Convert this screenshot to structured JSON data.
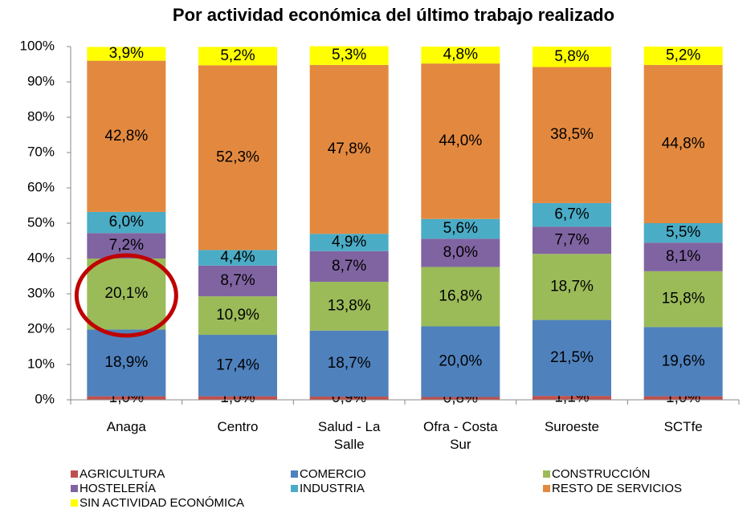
{
  "chart_data": {
    "type": "stacked_bar",
    "title": "Por actividad económica del último trabajo realizado",
    "categories": [
      "Anaga",
      "Centro",
      "Salud - La Salle",
      "Ofra - Costa Sur",
      "Suroeste",
      "SCTfe"
    ],
    "series": [
      {
        "name": "AGRICULTURA",
        "color": "#c0504d",
        "values": [
          1.0,
          1.0,
          0.9,
          0.8,
          1.1,
          1.0
        ],
        "value_labels": [
          "1,0%",
          "1,0%",
          "0,9%",
          "0,8%",
          "1,1%",
          "1,0%"
        ]
      },
      {
        "name": "COMERCIO",
        "color": "#4f81bd",
        "values": [
          18.9,
          17.4,
          18.7,
          20.0,
          21.5,
          19.6
        ],
        "value_labels": [
          "18,9%",
          "17,4%",
          "18,7%",
          "20,0%",
          "21,5%",
          "19,6%"
        ]
      },
      {
        "name": "CONSTRUCCIÓN",
        "color": "#9bbb59",
        "values": [
          20.1,
          10.9,
          13.8,
          16.8,
          18.7,
          15.8
        ],
        "value_labels": [
          "20,1%",
          "10,9%",
          "13,8%",
          "16,8%",
          "18,7%",
          "15,8%"
        ]
      },
      {
        "name": "HOSTELERÍA",
        "color": "#8064a2",
        "values": [
          7.2,
          8.7,
          8.7,
          8.0,
          7.7,
          8.1
        ],
        "value_labels": [
          "7,2%",
          "8,7%",
          "8,7%",
          "8,0%",
          "7,7%",
          "8,1%"
        ]
      },
      {
        "name": "INDUSTRIA",
        "color": "#4bacc6",
        "values": [
          6.0,
          4.4,
          4.9,
          5.6,
          6.7,
          5.5
        ],
        "value_labels": [
          "6,0%",
          "4,4%",
          "4,9%",
          "5,6%",
          "6,7%",
          "5,5%"
        ]
      },
      {
        "name": "RESTO DE SERVICIOS",
        "color": "#e3893f",
        "values": [
          42.8,
          52.3,
          47.8,
          44.0,
          38.5,
          44.8
        ],
        "value_labels": [
          "42,8%",
          "52,3%",
          "47,8%",
          "44,0%",
          "38,5%",
          "44,8%"
        ]
      },
      {
        "name": "SIN ACTIVIDAD ECONÓMICA",
        "color": "#ffff00",
        "values": [
          3.9,
          5.2,
          5.3,
          4.8,
          5.8,
          5.2
        ],
        "value_labels": [
          "3,9%",
          "5,2%",
          "5,3%",
          "4,8%",
          "5,8%",
          "5,2%"
        ]
      }
    ],
    "ylim": [
      0,
      100
    ],
    "yticks": [
      {
        "value": 0,
        "label": "0%"
      },
      {
        "value": 10,
        "label": "10%"
      },
      {
        "value": 20,
        "label": "20%"
      },
      {
        "value": 30,
        "label": "30%"
      },
      {
        "value": 40,
        "label": "40%"
      },
      {
        "value": 50,
        "label": "50%"
      },
      {
        "value": 60,
        "label": "60%"
      },
      {
        "value": 70,
        "label": "70%"
      },
      {
        "value": 80,
        "label": "80%"
      },
      {
        "value": 90,
        "label": "90%"
      },
      {
        "value": 100,
        "label": "100%"
      }
    ],
    "legend": "bottom"
  }
}
